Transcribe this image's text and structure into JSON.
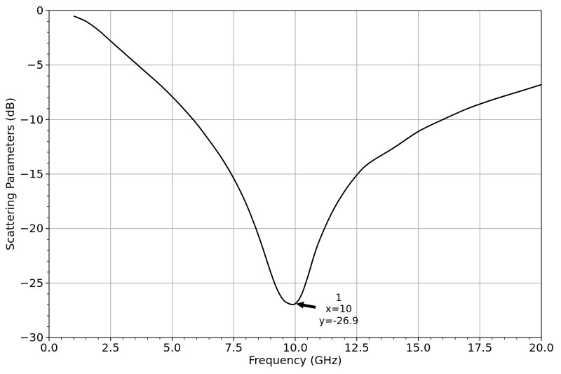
{
  "chart_data": {
    "type": "line",
    "title": "",
    "xlabel": "Frequency (GHz)",
    "ylabel": "Scattering Parameters (dB)",
    "xlim": [
      0,
      20
    ],
    "ylim": [
      -30,
      0
    ],
    "xticks": [
      0,
      2.5,
      5,
      7.5,
      10,
      12.5,
      15,
      17.5,
      20
    ],
    "xtick_labels": [
      "0.0",
      "2.5",
      "5.0",
      "7.5",
      "10.0",
      "12.5",
      "15.0",
      "17.5",
      "20.0"
    ],
    "yticks": [
      0,
      -5,
      -10,
      -15,
      -20,
      -25,
      -30
    ],
    "ytick_labels": [
      "0",
      "−5",
      "−10",
      "−15",
      "−20",
      "−25",
      "−30"
    ],
    "grid": true,
    "line_color": "#000000",
    "grid_color": "#b0b0b0",
    "series": [
      {
        "x": [
          1,
          1.5,
          2,
          2.5,
          3,
          3.5,
          4,
          4.5,
          5,
          5.5,
          6,
          6.5,
          7,
          7.5,
          8,
          8.5,
          9,
          9.25,
          9.5,
          9.75,
          10,
          10.25,
          10.5,
          10.75,
          11,
          11.5,
          12,
          12.5,
          13,
          14,
          15,
          16,
          17,
          18,
          19,
          20
        ],
        "y": [
          -0.5,
          -1.0,
          -1.8,
          -2.8,
          -3.8,
          -4.8,
          -5.8,
          -6.8,
          -7.9,
          -9.1,
          -10.4,
          -11.9,
          -13.5,
          -15.4,
          -17.7,
          -20.6,
          -24.0,
          -25.5,
          -26.5,
          -26.9,
          -26.9,
          -26.1,
          -24.5,
          -22.6,
          -21.0,
          -18.5,
          -16.6,
          -15.1,
          -14.0,
          -12.6,
          -11.1,
          -10.0,
          -9.0,
          -8.2,
          -7.5,
          -6.8
        ]
      }
    ],
    "annotation": {
      "x": 10,
      "y": -26.9,
      "lines": [
        "1",
        "x=10",
        "y=-26.9"
      ]
    }
  }
}
